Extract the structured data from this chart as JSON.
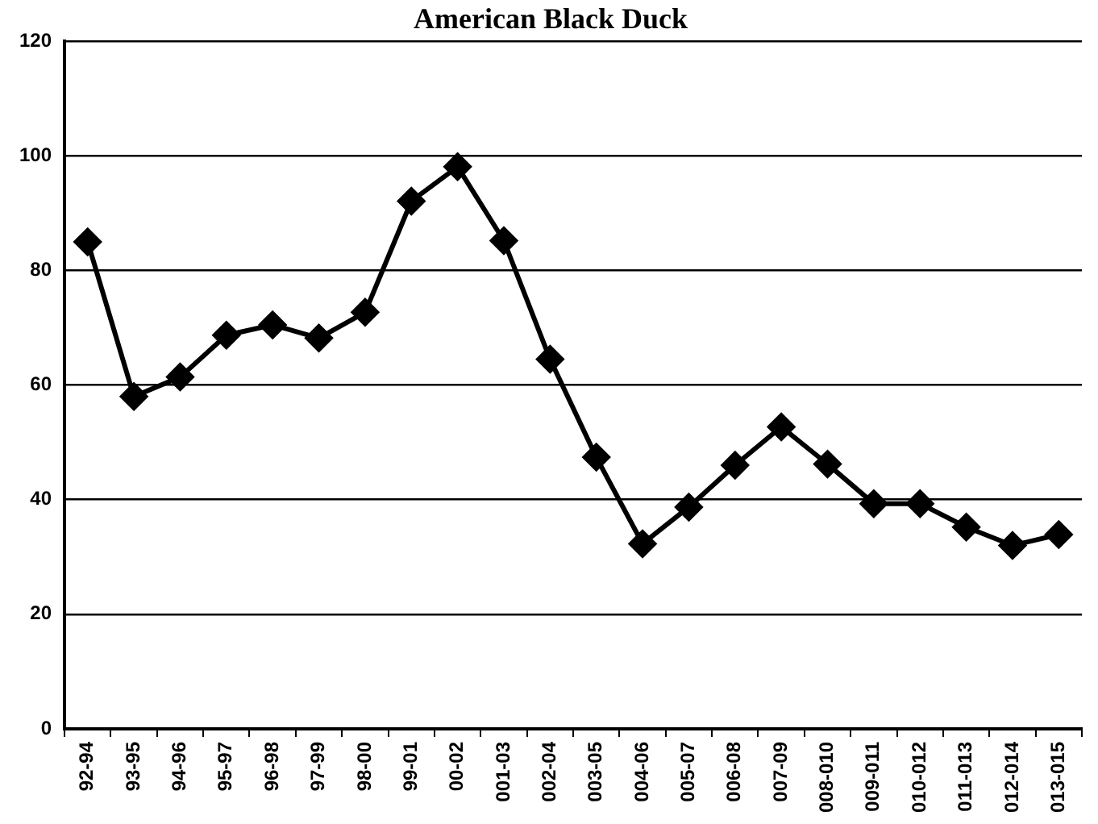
{
  "chart_data": {
    "type": "line",
    "title": "American Black Duck",
    "categories": [
      "92-94",
      "93-95",
      "94-96",
      "95-97",
      "96-98",
      "97-99",
      "98-00",
      "99-01",
      "00-02",
      "001-03",
      "002-04",
      "003-05",
      "004-06",
      "005-07",
      "006-08",
      "007-09",
      "008-010",
      "009-011",
      "010-012",
      "011-013",
      "012-014",
      "013-015"
    ],
    "series": [
      {
        "color": "#000000",
        "values": [
          85,
          58,
          61.4,
          68.7,
          70.5,
          68.2,
          72.7,
          92.1,
          98.1,
          85.2,
          64.5,
          47.4,
          32.3,
          38.7,
          46,
          52.7,
          46.2,
          39.3,
          39.3,
          35.2,
          32,
          33.9
        ]
      }
    ],
    "ylim": [
      0,
      120
    ],
    "yticks": [
      0,
      20,
      40,
      60,
      80,
      100,
      120
    ],
    "grid": "y",
    "legend": false,
    "marker": "diamond",
    "line_style": "solid"
  }
}
